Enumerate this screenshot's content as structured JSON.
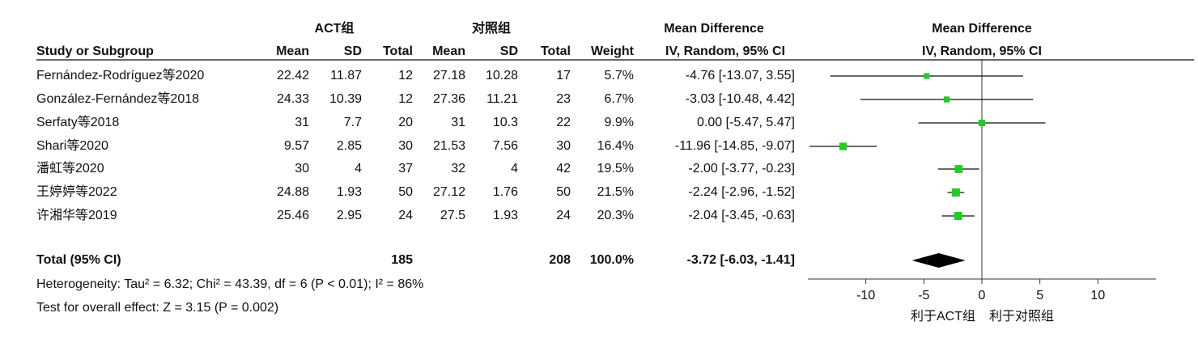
{
  "chart_data": {
    "type": "forest",
    "headers": {
      "group1": "ACT组",
      "group2": "对照组",
      "md_title": "Mean Difference",
      "md_sub": "IV, Random, 95% CI",
      "study": "Study or Subgroup",
      "mean": "Mean",
      "sd": "SD",
      "total": "Total",
      "weight": "Weight"
    },
    "studies": [
      {
        "name": "Fernández-Rodríguez等2020",
        "mean1": 22.42,
        "sd1": 11.87,
        "n1": 12,
        "mean2": 27.18,
        "sd2": 10.28,
        "n2": 17,
        "weight": 5.7,
        "weight_label": "5.7%",
        "md": -4.76,
        "lo": -13.07,
        "hi": 3.55,
        "ci_label": "-4.76 [-13.07, 3.55]"
      },
      {
        "name": "González-Fernández等2018",
        "mean1": 24.33,
        "sd1": 10.39,
        "n1": 12,
        "mean2": 27.36,
        "sd2": 11.21,
        "n2": 23,
        "weight": 6.7,
        "weight_label": "6.7%",
        "md": -3.03,
        "lo": -10.48,
        "hi": 4.42,
        "ci_label": "-3.03 [-10.48, 4.42]"
      },
      {
        "name": "Serfaty等2018",
        "mean1": 31,
        "sd1": 7.7,
        "n1": 20,
        "mean2": 31,
        "sd2": 10.3,
        "n2": 22,
        "weight": 9.9,
        "weight_label": "9.9%",
        "md": 0,
        "lo": -5.47,
        "hi": 5.47,
        "ci_label": "0.00 [-5.47, 5.47]"
      },
      {
        "name": "Shari等2020",
        "mean1": 9.57,
        "sd1": 2.85,
        "n1": 30,
        "mean2": 21.53,
        "sd2": 7.56,
        "n2": 30,
        "weight": 16.4,
        "weight_label": "16.4%",
        "md": -11.96,
        "lo": -14.85,
        "hi": -9.07,
        "ci_label": "-11.96 [-14.85, -9.07]"
      },
      {
        "name": "潘虹等2020",
        "mean1": 30,
        "sd1": 4,
        "n1": 37,
        "mean2": 32,
        "sd2": 4,
        "n2": 42,
        "weight": 19.5,
        "weight_label": "19.5%",
        "md": -2.0,
        "lo": -3.77,
        "hi": -0.23,
        "ci_label": "-2.00 [-3.77, -0.23]"
      },
      {
        "name": "王婷婷等2022",
        "mean1": 24.88,
        "sd1": 1.93,
        "n1": 50,
        "mean2": 27.12,
        "sd2": 1.76,
        "n2": 50,
        "weight": 21.5,
        "weight_label": "21.5%",
        "md": -2.24,
        "lo": -2.96,
        "hi": -1.52,
        "ci_label": "-2.24 [-2.96, -1.52]"
      },
      {
        "name": "许湘华等2019",
        "mean1": 25.46,
        "sd1": 2.95,
        "n1": 24,
        "mean2": 27.5,
        "sd2": 1.93,
        "n2": 24,
        "weight": 20.3,
        "weight_label": "20.3%",
        "md": -2.04,
        "lo": -3.45,
        "hi": -0.63,
        "ci_label": "-2.04 [-3.45, -0.63]"
      }
    ],
    "total": {
      "name": "Total (95% CI)",
      "n1": 185,
      "n2": 208,
      "weight": 100,
      "weight_label": "100.0%",
      "md": -3.72,
      "lo": -6.03,
      "hi": -1.41,
      "ci_label": "-3.72 [-6.03, -1.41]"
    },
    "heterogeneity": "Heterogeneity: Tau² = 6.32; Chi² = 43.39, df = 6 (P < 0.01); I² = 86%",
    "overall": "Test for overall effect: Z = 3.15 (P = 0.002)",
    "xlim": [
      -15,
      15
    ],
    "xticks": [
      -10,
      -5,
      0,
      5,
      10
    ],
    "favours_left": "利于ACT组",
    "favours_right": "利于对照组",
    "marker_color": "#22cc22"
  }
}
